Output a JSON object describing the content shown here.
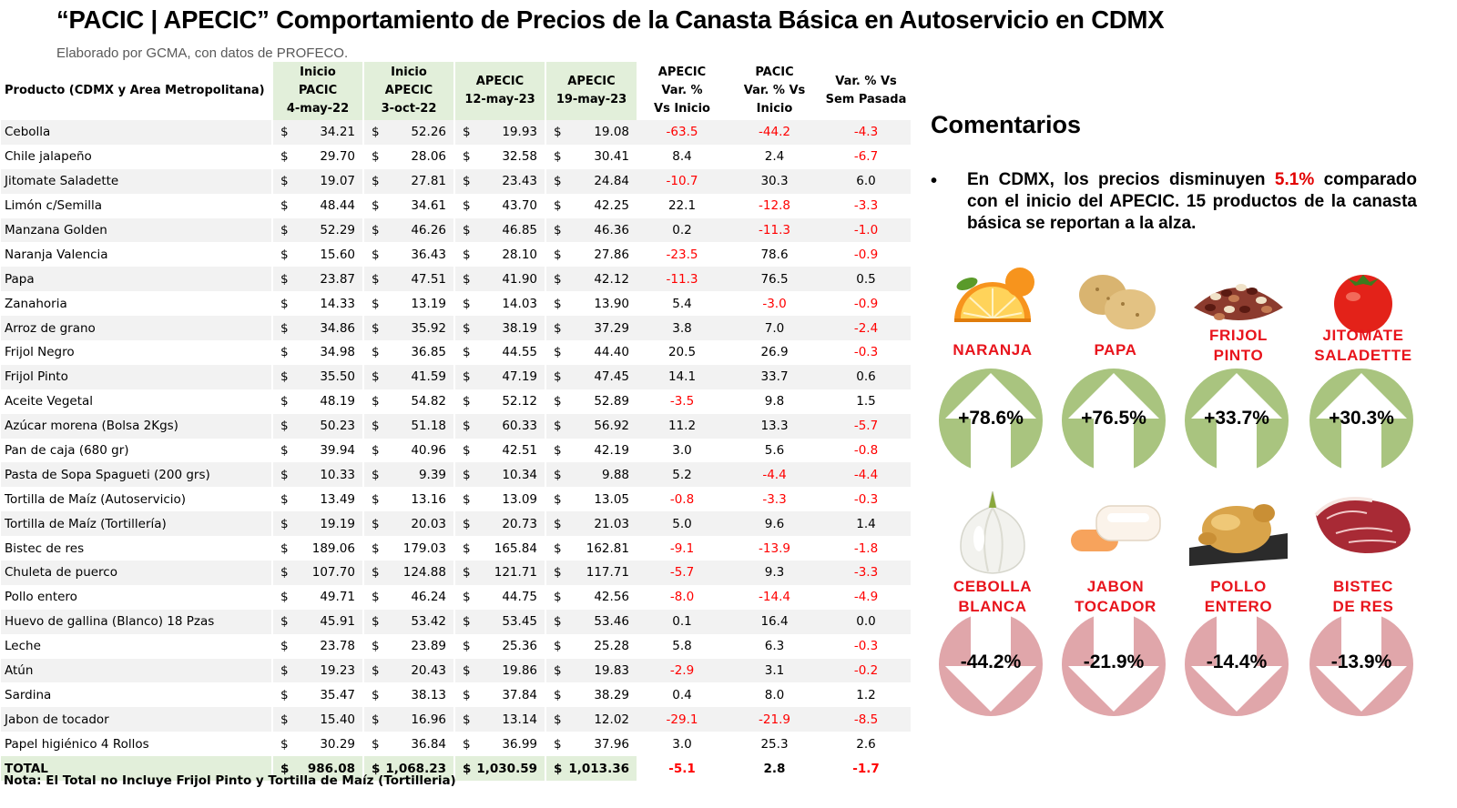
{
  "title": "“PACIC | APECIC” Comportamiento de Precios de la Canasta Básica en Autoservicio en CDMX",
  "subtitle": "Elaborado por GCMA, con datos de PROFECO.",
  "table": {
    "headers": {
      "product": "Producto (CDMX y Area Metropolitana)",
      "c1": [
        "Inicio",
        "PACIC",
        "4-may-22"
      ],
      "c2": [
        "Inicio",
        "APECIC",
        "3-oct-22"
      ],
      "c3": [
        "APECIC",
        "12-may-23"
      ],
      "c4": [
        "APECIC",
        "19-may-23"
      ],
      "c5": [
        "APECIC",
        "Var. %",
        "Vs  Inicio"
      ],
      "c6": [
        "PACIC",
        "Var. % Vs",
        "Inicio"
      ],
      "c7": [
        "Var. % Vs",
        "Sem Pasada"
      ]
    },
    "currency_symbol": "$",
    "rows": [
      {
        "product": "Cebolla",
        "p1": "34.21",
        "p2": "52.26",
        "p3": "19.93",
        "p4": "19.08",
        "v1": "-63.5",
        "v2": "-44.2",
        "v3": "-4.3"
      },
      {
        "product": "Chile jalapeño",
        "p1": "29.70",
        "p2": "28.06",
        "p3": "32.58",
        "p4": "30.41",
        "v1": "8.4",
        "v2": "2.4",
        "v3": "-6.7"
      },
      {
        "product": "Jitomate Saladette",
        "p1": "19.07",
        "p2": "27.81",
        "p3": "23.43",
        "p4": "24.84",
        "v1": "-10.7",
        "v2": "30.3",
        "v3": "6.0"
      },
      {
        "product": "Limón c/Semilla",
        "p1": "48.44",
        "p2": "34.61",
        "p3": "43.70",
        "p4": "42.25",
        "v1": "22.1",
        "v2": "-12.8",
        "v3": "-3.3"
      },
      {
        "product": "Manzana Golden",
        "p1": "52.29",
        "p2": "46.26",
        "p3": "46.85",
        "p4": "46.36",
        "v1": "0.2",
        "v2": "-11.3",
        "v3": "-1.0"
      },
      {
        "product": "Naranja Valencia",
        "p1": "15.60",
        "p2": "36.43",
        "p3": "28.10",
        "p4": "27.86",
        "v1": "-23.5",
        "v2": "78.6",
        "v3": "-0.9"
      },
      {
        "product": "Papa",
        "p1": "23.87",
        "p2": "47.51",
        "p3": "41.90",
        "p4": "42.12",
        "v1": "-11.3",
        "v2": "76.5",
        "v3": "0.5"
      },
      {
        "product": "Zanahoria",
        "p1": "14.33",
        "p2": "13.19",
        "p3": "14.03",
        "p4": "13.90",
        "v1": "5.4",
        "v2": "-3.0",
        "v3": "-0.9"
      },
      {
        "product": "Arroz de grano",
        "p1": "34.86",
        "p2": "35.92",
        "p3": "38.19",
        "p4": "37.29",
        "v1": "3.8",
        "v2": "7.0",
        "v3": "-2.4"
      },
      {
        "product": "Frijol Negro",
        "p1": "34.98",
        "p2": "36.85",
        "p3": "44.55",
        "p4": "44.40",
        "v1": "20.5",
        "v2": "26.9",
        "v3": "-0.3"
      },
      {
        "product": "Frijol Pinto",
        "p1": "35.50",
        "p2": "41.59",
        "p3": "47.19",
        "p4": "47.45",
        "v1": "14.1",
        "v2": "33.7",
        "v3": "0.6"
      },
      {
        "product": "Aceite Vegetal",
        "p1": "48.19",
        "p2": "54.82",
        "p3": "52.12",
        "p4": "52.89",
        "v1": "-3.5",
        "v2": "9.8",
        "v3": "1.5"
      },
      {
        "product": "Azúcar morena (Bolsa 2Kgs)",
        "p1": "50.23",
        "p2": "51.18",
        "p3": "60.33",
        "p4": "56.92",
        "v1": "11.2",
        "v2": "13.3",
        "v3": "-5.7"
      },
      {
        "product": "Pan de caja (680 gr)",
        "p1": "39.94",
        "p2": "40.96",
        "p3": "42.51",
        "p4": "42.19",
        "v1": "3.0",
        "v2": "5.6",
        "v3": "-0.8"
      },
      {
        "product": "Pasta de Sopa Spagueti (200 grs)",
        "p1": "10.33",
        "p2": "9.39",
        "p3": "10.34",
        "p4": "9.88",
        "v1": "5.2",
        "v2": "-4.4",
        "v3": "-4.4"
      },
      {
        "product": "Tortilla de Maíz (Autoservicio)",
        "p1": "13.49",
        "p2": "13.16",
        "p3": "13.09",
        "p4": "13.05",
        "v1": "-0.8",
        "v2": "-3.3",
        "v3": "-0.3"
      },
      {
        "product": "Tortilla de Maíz (Tortillería)",
        "p1": "19.19",
        "p2": "20.03",
        "p3": "20.73",
        "p4": "21.03",
        "v1": "5.0",
        "v2": "9.6",
        "v3": "1.4"
      },
      {
        "product": "Bistec de res",
        "p1": "189.06",
        "p2": "179.03",
        "p3": "165.84",
        "p4": "162.81",
        "v1": "-9.1",
        "v2": "-13.9",
        "v3": "-1.8"
      },
      {
        "product": "Chuleta de puerco",
        "p1": "107.70",
        "p2": "124.88",
        "p3": "121.71",
        "p4": "117.71",
        "v1": "-5.7",
        "v2": "9.3",
        "v3": "-3.3"
      },
      {
        "product": "Pollo entero",
        "p1": "49.71",
        "p2": "46.24",
        "p3": "44.75",
        "p4": "42.56",
        "v1": "-8.0",
        "v2": "-14.4",
        "v3": "-4.9"
      },
      {
        "product": "Huevo de gallina (Blanco) 18 Pzas",
        "p1": "45.91",
        "p2": "53.42",
        "p3": "53.45",
        "p4": "53.46",
        "v1": "0.1",
        "v2": "16.4",
        "v3": "0.0"
      },
      {
        "product": "Leche",
        "p1": "23.78",
        "p2": "23.89",
        "p3": "25.36",
        "p4": "25.28",
        "v1": "5.8",
        "v2": "6.3",
        "v3": "-0.3"
      },
      {
        "product": "Atún",
        "p1": "19.23",
        "p2": "20.43",
        "p3": "19.86",
        "p4": "19.83",
        "v1": "-2.9",
        "v2": "3.1",
        "v3": "-0.2"
      },
      {
        "product": "Sardina",
        "p1": "35.47",
        "p2": "38.13",
        "p3": "37.84",
        "p4": "38.29",
        "v1": "0.4",
        "v2": "8.0",
        "v3": "1.2"
      },
      {
        "product": "Jabon de tocador",
        "p1": "15.40",
        "p2": "16.96",
        "p3": "13.14",
        "p4": "12.02",
        "v1": "-29.1",
        "v2": "-21.9",
        "v3": "-8.5"
      },
      {
        "product": "Papel higiénico 4 Rollos",
        "p1": "30.29",
        "p2": "36.84",
        "p3": "36.99",
        "p4": "37.96",
        "v1": "3.0",
        "v2": "25.3",
        "v3": "2.6"
      }
    ],
    "total": {
      "product": "TOTAL",
      "p1": "986.08",
      "p2": "1,068.23",
      "p3": "1,030.59",
      "p4": "1,013.36",
      "v1": "-5.1",
      "v2": "2.8",
      "v3": "-1.7"
    }
  },
  "note": "Nota: El Total no Incluye Frijol Pinto y Tortilla de Maíz (Tortilleria)",
  "comments": {
    "heading": "Comentarios",
    "bullet": "•",
    "text_before": "En CDMX, los precios disminuyen ",
    "highlight": "5.1%",
    "text_after": " comparado con el inicio del APECIC. 15 productos de la canasta básica se reportan a la alza."
  },
  "colors": {
    "negative": "#ff0000",
    "header_fill": "#e2efda",
    "stripe": "#f2f2f2",
    "up_arrow": "#a9c47f",
    "down_arrow": "#e0a6aa",
    "label_red": "#e8141c"
  },
  "highlights": {
    "up": [
      {
        "label": [
          "NARANJA"
        ],
        "value": "+78.6%",
        "icon": "orange-icon"
      },
      {
        "label": [
          "PAPA"
        ],
        "value": "+76.5%",
        "icon": "potato-icon"
      },
      {
        "label": [
          "FRIJOL",
          "PINTO"
        ],
        "value": "+33.7%",
        "icon": "beans-icon"
      },
      {
        "label": [
          "JITOMATE",
          "SALADETTE"
        ],
        "value": "+30.3%",
        "icon": "tomato-icon"
      }
    ],
    "down": [
      {
        "label": [
          "CEBOLLA",
          "BLANCA"
        ],
        "value": "-44.2%",
        "icon": "onion-icon"
      },
      {
        "label": [
          "JABON",
          "TOCADOR"
        ],
        "value": "-21.9%",
        "icon": "soap-icon"
      },
      {
        "label": [
          "POLLO",
          "ENTERO"
        ],
        "value": "-14.4%",
        "icon": "chicken-icon"
      },
      {
        "label": [
          "BISTEC",
          "DE RES"
        ],
        "value": "-13.9%",
        "icon": "beef-steak-icon"
      }
    ]
  }
}
